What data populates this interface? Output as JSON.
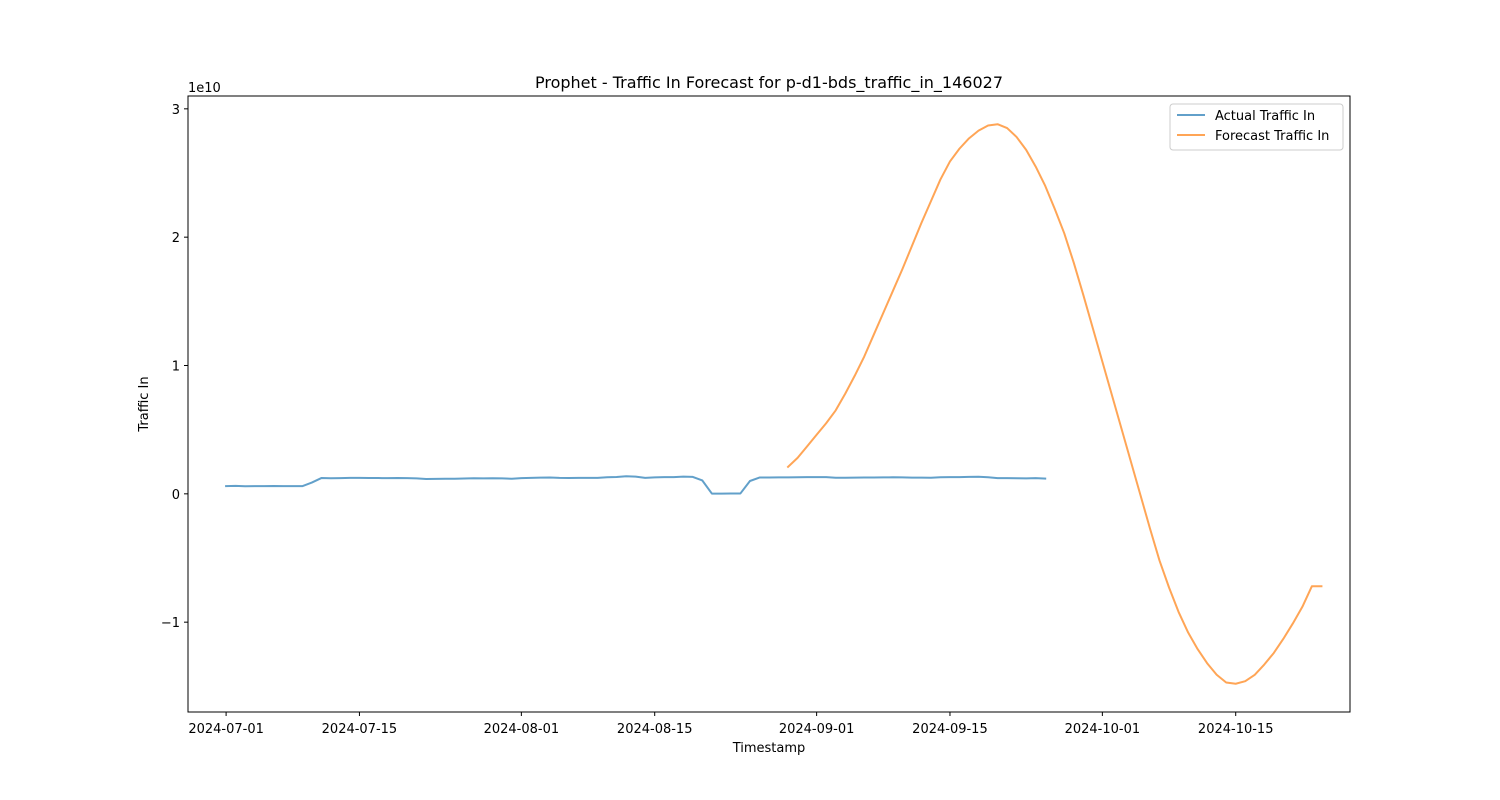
{
  "chart_data": {
    "type": "line",
    "title": "Prophet - Traffic In Forecast for p-d1-bds_traffic_in_146027",
    "xlabel": "Timestamp",
    "ylabel": "Traffic In",
    "y_offset_label": "1e10",
    "x_axis_type": "date",
    "xlim": [
      "2024-06-27",
      "2024-10-27"
    ],
    "ylim": [
      -17000000000,
      31000000000
    ],
    "x_ticks": [
      "2024-07-01",
      "2024-07-15",
      "2024-08-01",
      "2024-08-15",
      "2024-09-01",
      "2024-09-15",
      "2024-10-01",
      "2024-10-15"
    ],
    "y_ticks": [
      -10000000000,
      0,
      10000000000,
      20000000000,
      30000000000
    ],
    "y_tick_labels": [
      "−1",
      "0",
      "1",
      "2",
      "3"
    ],
    "grid": false,
    "legend_position": "top-right",
    "series": [
      {
        "name": "Actual Traffic In",
        "color": "#1f77b4",
        "x": [
          "2024-07-01",
          "2024-07-02",
          "2024-07-03",
          "2024-07-04",
          "2024-07-05",
          "2024-07-06",
          "2024-07-07",
          "2024-07-08",
          "2024-07-09",
          "2024-07-10",
          "2024-07-11",
          "2024-07-12",
          "2024-07-13",
          "2024-07-14",
          "2024-07-15",
          "2024-07-16",
          "2024-07-17",
          "2024-07-18",
          "2024-07-19",
          "2024-07-20",
          "2024-07-21",
          "2024-07-22",
          "2024-07-23",
          "2024-07-24",
          "2024-07-25",
          "2024-07-26",
          "2024-07-27",
          "2024-07-28",
          "2024-07-29",
          "2024-07-30",
          "2024-07-31",
          "2024-08-01",
          "2024-08-02",
          "2024-08-03",
          "2024-08-04",
          "2024-08-05",
          "2024-08-06",
          "2024-08-07",
          "2024-08-08",
          "2024-08-09",
          "2024-08-10",
          "2024-08-11",
          "2024-08-12",
          "2024-08-13",
          "2024-08-14",
          "2024-08-15",
          "2024-08-16",
          "2024-08-17",
          "2024-08-18",
          "2024-08-19",
          "2024-08-20",
          "2024-08-21",
          "2024-08-22",
          "2024-08-23",
          "2024-08-24",
          "2024-08-25",
          "2024-08-26",
          "2024-08-27",
          "2024-08-28",
          "2024-08-29",
          "2024-08-30",
          "2024-08-31",
          "2024-09-01",
          "2024-09-02",
          "2024-09-03",
          "2024-09-04",
          "2024-09-05",
          "2024-09-06",
          "2024-09-07",
          "2024-09-08",
          "2024-09-09",
          "2024-09-10",
          "2024-09-11",
          "2024-09-12",
          "2024-09-13",
          "2024-09-14",
          "2024-09-15",
          "2024-09-16",
          "2024-09-17",
          "2024-09-18",
          "2024-09-19",
          "2024-09-20",
          "2024-09-21",
          "2024-09-22",
          "2024-09-23",
          "2024-09-24",
          "2024-09-25"
        ],
        "values": [
          600000000,
          620000000,
          590000000,
          600000000,
          600000000,
          610000000,
          600000000,
          600000000,
          600000000,
          880000000,
          1230000000,
          1210000000,
          1220000000,
          1240000000,
          1240000000,
          1230000000,
          1230000000,
          1220000000,
          1230000000,
          1220000000,
          1200000000,
          1160000000,
          1170000000,
          1180000000,
          1180000000,
          1190000000,
          1210000000,
          1200000000,
          1210000000,
          1200000000,
          1180000000,
          1220000000,
          1240000000,
          1260000000,
          1270000000,
          1240000000,
          1230000000,
          1240000000,
          1240000000,
          1240000000,
          1290000000,
          1310000000,
          1370000000,
          1340000000,
          1240000000,
          1280000000,
          1300000000,
          1300000000,
          1340000000,
          1320000000,
          1040000000,
          20000000,
          20000000,
          30000000,
          30000000,
          1000000000,
          1270000000,
          1270000000,
          1280000000,
          1280000000,
          1290000000,
          1300000000,
          1300000000,
          1300000000,
          1250000000,
          1250000000,
          1260000000,
          1270000000,
          1270000000,
          1280000000,
          1290000000,
          1280000000,
          1260000000,
          1260000000,
          1250000000,
          1290000000,
          1300000000,
          1300000000,
          1320000000,
          1330000000,
          1290000000,
          1220000000,
          1220000000,
          1210000000,
          1200000000,
          1220000000,
          1190000000
        ]
      },
      {
        "name": "Forecast Traffic In",
        "color": "#ff7f0e",
        "x": [
          "2024-08-29",
          "2024-08-30",
          "2024-08-31",
          "2024-09-01",
          "2024-09-02",
          "2024-09-03",
          "2024-09-04",
          "2024-09-05",
          "2024-09-06",
          "2024-09-07",
          "2024-09-08",
          "2024-09-09",
          "2024-09-10",
          "2024-09-11",
          "2024-09-12",
          "2024-09-13",
          "2024-09-14",
          "2024-09-15",
          "2024-09-16",
          "2024-09-17",
          "2024-09-18",
          "2024-09-19",
          "2024-09-20",
          "2024-09-21",
          "2024-09-22",
          "2024-09-23",
          "2024-09-24",
          "2024-09-25",
          "2024-09-26",
          "2024-09-27",
          "2024-09-28",
          "2024-09-29",
          "2024-09-30",
          "2024-10-01",
          "2024-10-02",
          "2024-10-03",
          "2024-10-04",
          "2024-10-05",
          "2024-10-06",
          "2024-10-07",
          "2024-10-08",
          "2024-10-09",
          "2024-10-10",
          "2024-10-11",
          "2024-10-12",
          "2024-10-13",
          "2024-10-14",
          "2024-10-15",
          "2024-10-16",
          "2024-10-17",
          "2024-10-18",
          "2024-10-19",
          "2024-10-20",
          "2024-10-21",
          "2024-10-22",
          "2024-10-23",
          "2024-10-24"
        ],
        "values": [
          2100000000,
          2800000000,
          3700000000,
          4600000000,
          5500000000,
          6500000000,
          7800000000,
          9200000000,
          10700000000,
          12400000000,
          14100000000,
          15800000000,
          17500000000,
          19300000000,
          21100000000,
          22800000000,
          24500000000,
          25900000000,
          26900000000,
          27700000000,
          28300000000,
          28700000000,
          28800000000,
          28500000000,
          27800000000,
          26800000000,
          25500000000,
          24000000000,
          22200000000,
          20300000000,
          18000000000,
          15500000000,
          12900000000,
          10300000000,
          7700000000,
          5100000000,
          2500000000,
          -100000000,
          -2700000000,
          -5200000000,
          -7300000000,
          -9200000000,
          -10800000000,
          -12100000000,
          -13200000000,
          -14100000000,
          -14700000000,
          -14800000000,
          -14600000000,
          -14100000000,
          -13300000000,
          -12400000000,
          -11300000000,
          -10100000000,
          -8800000000,
          -7200000000,
          -7200000000
        ]
      }
    ]
  }
}
